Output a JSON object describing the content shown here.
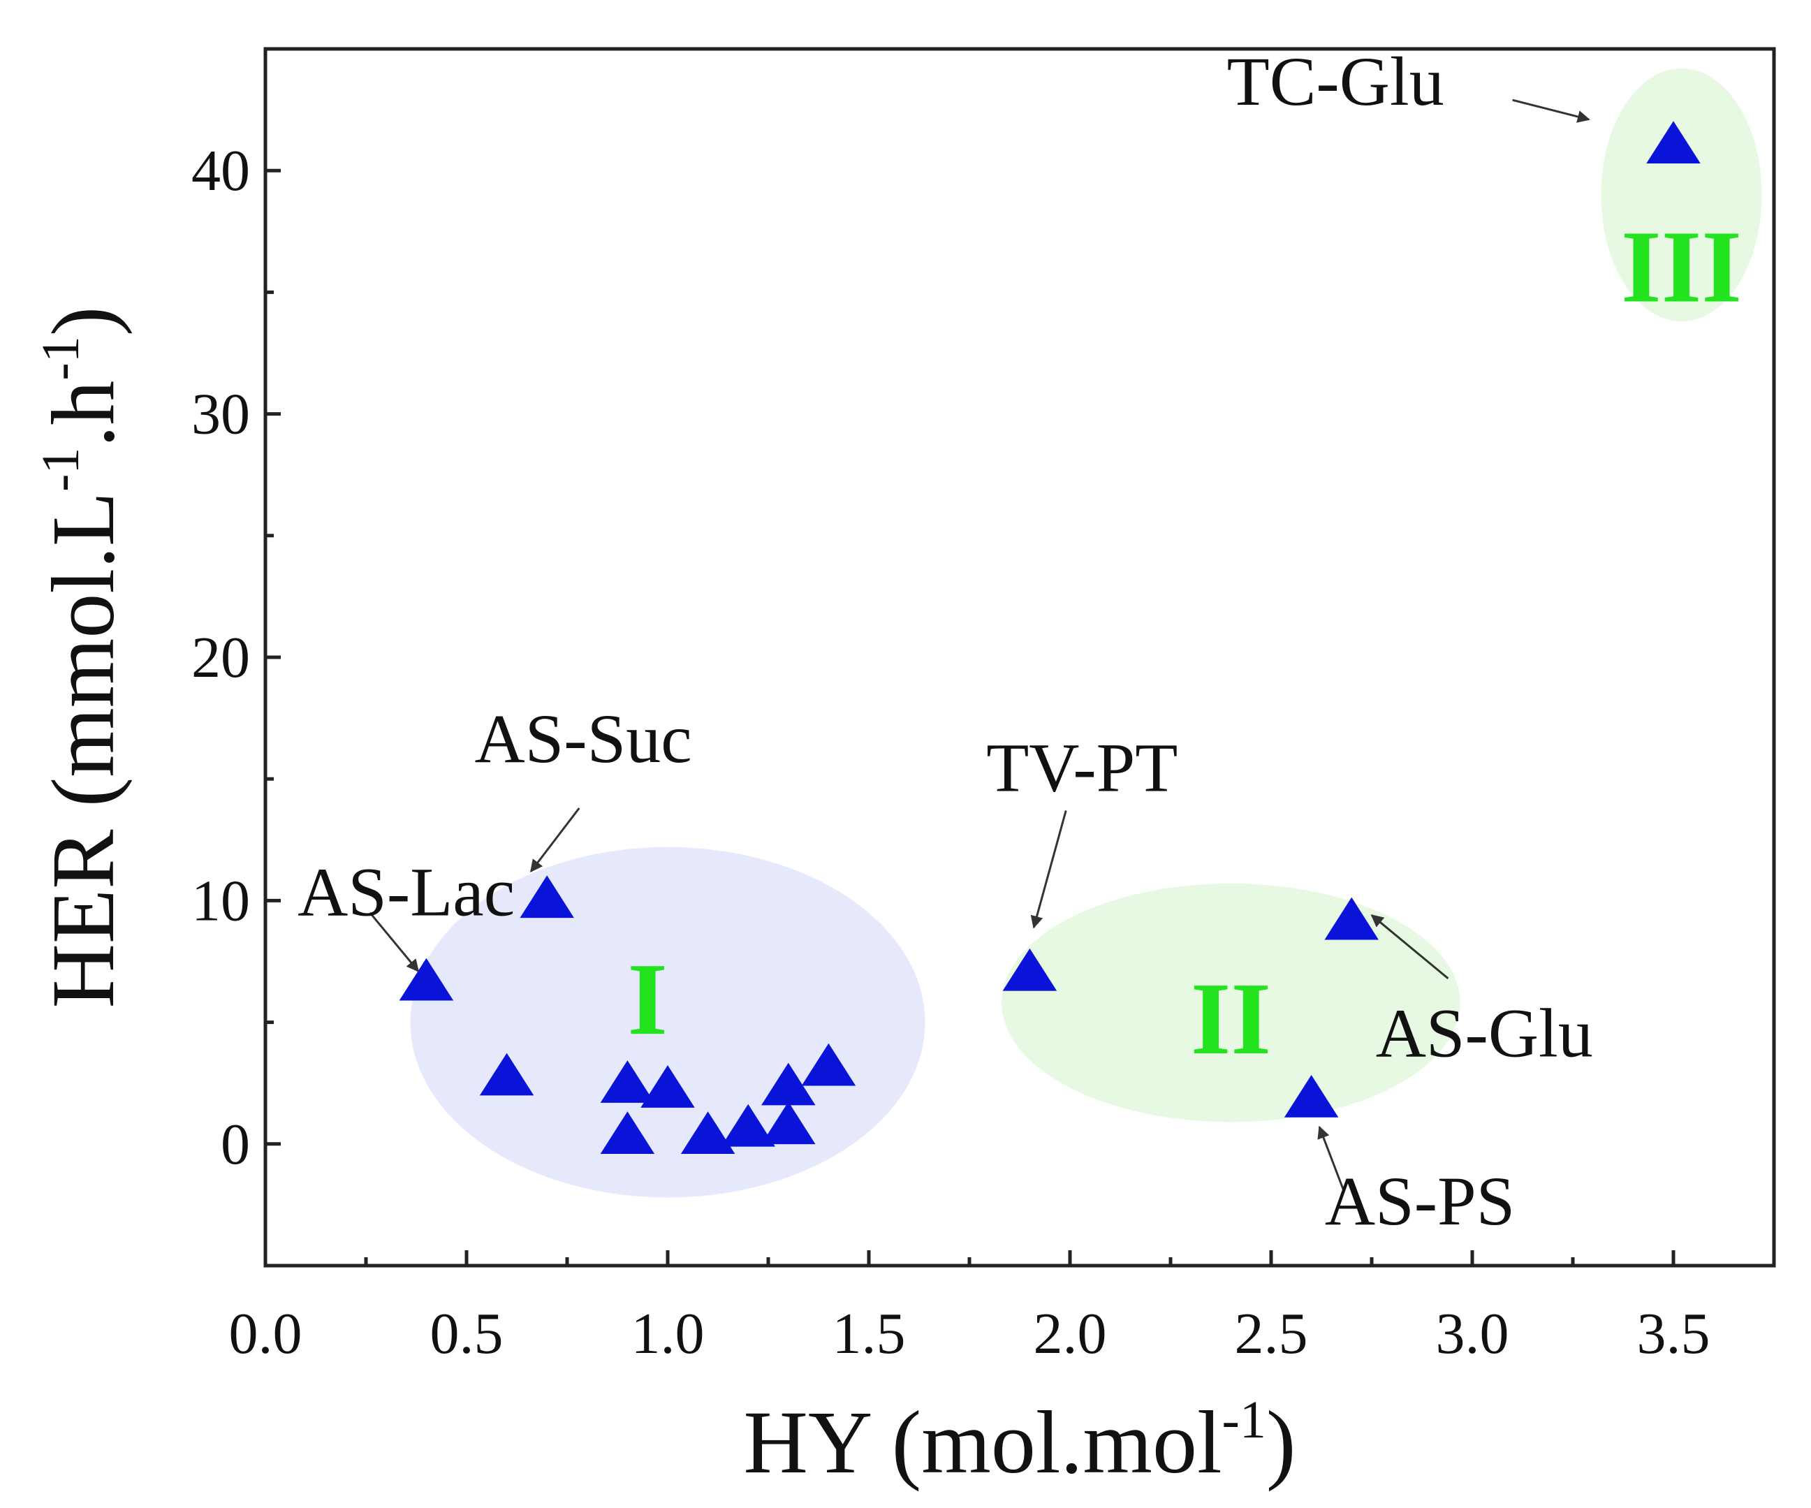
{
  "chart_data": {
    "type": "scatter",
    "title": "",
    "xlabel": "HY (mol.mol",
    "xlabel_sup": "-1",
    "xlabel_suffix": ")",
    "ylabel_prefix": "HER (mmol.L",
    "ylabel_sup1": "-1",
    "ylabel_mid": ".h",
    "ylabel_sup2": "-1",
    "ylabel_suffix": ")",
    "xlim": [
      0.0,
      3.75
    ],
    "ylim": [
      -5,
      45
    ],
    "x_ticks": [
      0.0,
      0.5,
      1.0,
      1.5,
      2.0,
      2.5,
      3.0,
      3.5
    ],
    "x_tick_labels": [
      "0.0",
      "0.5",
      "1.0",
      "1.5",
      "2.0",
      "2.5",
      "3.0",
      "3.5"
    ],
    "y_ticks": [
      0,
      10,
      20,
      30,
      40
    ],
    "y_tick_labels": [
      "0",
      "10",
      "20",
      "30",
      "40"
    ],
    "grid": false,
    "marker": "triangle",
    "marker_color": "#0a14d8",
    "points": [
      {
        "x": 0.4,
        "y": 6.6
      },
      {
        "x": 0.6,
        "y": 2.7
      },
      {
        "x": 0.7,
        "y": 10.0
      },
      {
        "x": 0.9,
        "y": 2.4
      },
      {
        "x": 0.9,
        "y": 0.3
      },
      {
        "x": 1.0,
        "y": 2.2
      },
      {
        "x": 1.1,
        "y": 0.3
      },
      {
        "x": 1.2,
        "y": 0.6
      },
      {
        "x": 1.3,
        "y": 2.3
      },
      {
        "x": 1.3,
        "y": 0.7
      },
      {
        "x": 1.4,
        "y": 3.1
      },
      {
        "x": 1.9,
        "y": 7.0
      },
      {
        "x": 2.6,
        "y": 1.8
      },
      {
        "x": 2.7,
        "y": 9.1
      },
      {
        "x": 3.5,
        "y": 41.0
      }
    ],
    "regions": [
      {
        "label": "I",
        "cx": 1.0,
        "cy": 5.0,
        "rx": 0.64,
        "ry": 7.2,
        "fill": "#e6e8fb",
        "label_color": "#22e31e",
        "label_x": 0.95,
        "label_y": 5.5
      },
      {
        "label": "II",
        "cx": 2.4,
        "cy": 5.8,
        "rx": 0.57,
        "ry": 4.9,
        "fill": "#e7f9e3",
        "label_color": "#22e31e",
        "label_x": 2.4,
        "label_y": 4.7
      },
      {
        "label": "III",
        "cx": 3.52,
        "cy": 39.0,
        "rx": 0.2,
        "ry": 5.2,
        "fill": "#e7f9e3",
        "label_color": "#22e31e",
        "label_x": 3.52,
        "label_y": 35.6
      }
    ],
    "annotations": [
      {
        "text": "AS-Lac",
        "text_x": 0.35,
        "text_y": 9.4,
        "anchor": "middle",
        "arrow_from": [
          0.26,
          9.5
        ],
        "arrow_to": [
          0.38,
          7.1
        ]
      },
      {
        "text": "AS-Suc",
        "text_x": 0.79,
        "text_y": 15.7,
        "anchor": "middle",
        "arrow_from": [
          0.78,
          13.8
        ],
        "arrow_to": [
          0.66,
          11.2
        ]
      },
      {
        "text": "TV-PT",
        "text_x": 2.03,
        "text_y": 14.5,
        "anchor": "middle",
        "arrow_from": [
          1.99,
          13.7
        ],
        "arrow_to": [
          1.91,
          8.9
        ]
      },
      {
        "text": "AS-Glu",
        "text_x": 3.03,
        "text_y": 3.6,
        "anchor": "middle",
        "arrow_from": [
          2.94,
          6.8
        ],
        "arrow_to": [
          2.75,
          9.4
        ]
      },
      {
        "text": "AS-PS",
        "text_x": 2.87,
        "text_y": -3.3,
        "anchor": "middle",
        "arrow_from": [
          2.68,
          -1.9
        ],
        "arrow_to": [
          2.62,
          0.7
        ]
      },
      {
        "text": "TC-Glu",
        "text_x": 2.66,
        "text_y": 42.7,
        "anchor": "middle",
        "arrow_from": [
          3.1,
          42.9
        ],
        "arrow_to": [
          3.29,
          42.1
        ]
      }
    ]
  }
}
